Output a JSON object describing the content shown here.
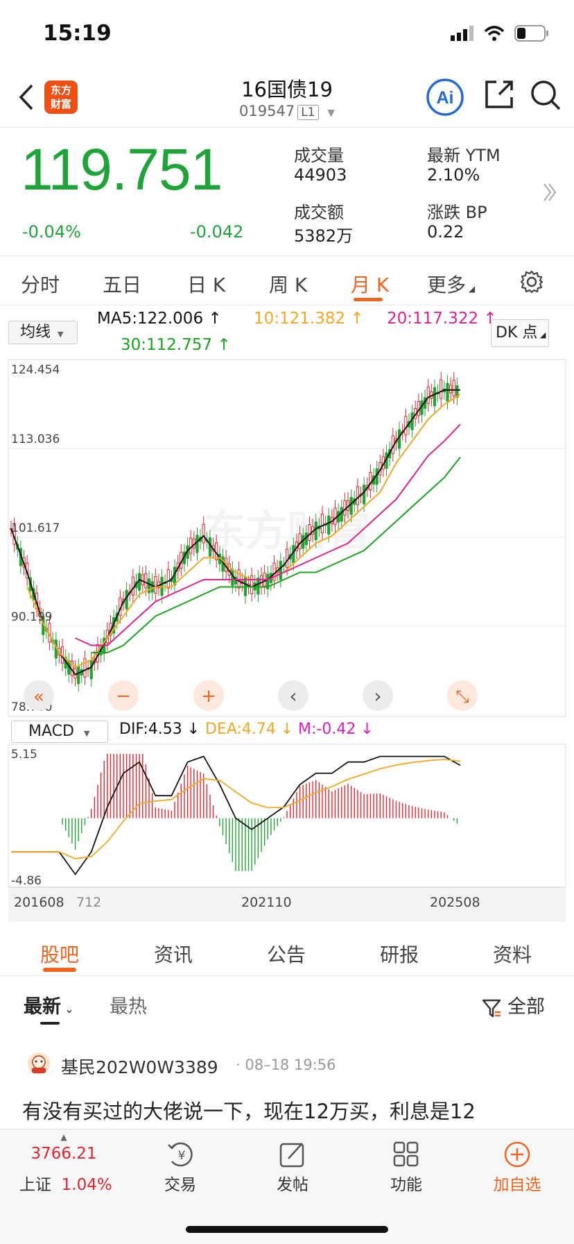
{
  "status": {
    "time": "15:19"
  },
  "header": {
    "title": "16国债19",
    "code": "019547",
    "level": "L1",
    "logo_text_1": "东方",
    "logo_text_2": "财富"
  },
  "quote": {
    "price": "119.751",
    "change_pct": "-0.04%",
    "change": "-0.042",
    "volume_label": "成交量",
    "volume": "44903",
    "ytm_label": "最新 YTM",
    "ytm": "2.10%",
    "amount_label": "成交额",
    "amount": "5382万",
    "bp_label": "涨跌 BP",
    "bp": "0.22"
  },
  "tabs": [
    "分时",
    "五日",
    "日 K",
    "周 K",
    "月 K",
    "更多"
  ],
  "indicators": {
    "selector": "均线",
    "ma5": "MA5:122.006",
    "ma10": "10:121.382",
    "ma20": "20:117.322",
    "ma30": "30:112.757",
    "dk": "DK 点",
    "macd_selector": "MACD",
    "dif": "DIF:4.53",
    "dea": "DEA:4.74",
    "m": "M:-0.42"
  },
  "chart_data": {
    "type": "line",
    "title": "",
    "price_axis_labels": [
      "124.454",
      "113.036",
      "101.617",
      "90.199",
      "78.780"
    ],
    "ylim": [
      78.78,
      124.454
    ],
    "macd_axis_labels": [
      "5.15",
      "-4.86"
    ],
    "macd_ylim": [
      -4.86,
      5.15
    ],
    "x_labels": [
      "201608",
      "712",
      "202110",
      "202508"
    ],
    "colors": {
      "up": "#e8232b",
      "down": "#1ea531",
      "ma5": "#111111",
      "ma10": "#f5a623",
      "ma20": "#e0228c",
      "ma30": "#1aa31e"
    },
    "series": [
      {
        "name": "MA5",
        "values": [
          103,
          97,
          90,
          86,
          83,
          84,
          88,
          93,
          96,
          95,
          96,
          100,
          102,
          99,
          96,
          95,
          96,
          98,
          101,
          103,
          104,
          106,
          108,
          111,
          115,
          118,
          121,
          122,
          122.0
        ]
      },
      {
        "name": "10",
        "values": [
          null,
          95,
          90,
          86,
          84,
          85,
          88,
          91,
          94,
          95,
          95,
          97,
          99,
          99,
          97,
          96,
          96,
          97,
          99,
          101,
          102,
          104,
          106,
          108,
          112,
          115,
          118,
          120,
          121.4
        ]
      },
      {
        "name": "20",
        "values": [
          null,
          null,
          null,
          null,
          88,
          87,
          87,
          89,
          91,
          93,
          94,
          95,
          96,
          96,
          96,
          96,
          96,
          97,
          98,
          99,
          100,
          101,
          103,
          105,
          107,
          110,
          113,
          115,
          117.3
        ]
      },
      {
        "name": "30",
        "values": [
          null,
          null,
          null,
          null,
          null,
          86,
          86,
          87,
          89,
          91,
          92,
          93,
          94,
          95,
          95,
          95,
          95,
          96,
          97,
          97,
          98,
          99,
          100,
          102,
          104,
          106,
          108,
          110,
          112.8
        ]
      }
    ]
  },
  "chart_controls": [
    "«",
    "−",
    "+",
    "‹",
    "›",
    "⤡"
  ],
  "watermark": "东方财富",
  "section_tabs": [
    "股吧",
    "资讯",
    "公告",
    "研报",
    "资料"
  ],
  "feed": {
    "sort_latest": "最新",
    "sort_hot": "最热",
    "filter": "全部",
    "post_user": "基民202W0W3389",
    "post_time": "· 08–18 19:56",
    "post_text": "有没有买过的大佬说一下，现在12万买，利息是12"
  },
  "bottom": {
    "index_value": "3766.21",
    "index_name": "上证",
    "index_pct": "1.04%",
    "trade": "交易",
    "post": "发帖",
    "func": "功能",
    "add": "加自选"
  }
}
